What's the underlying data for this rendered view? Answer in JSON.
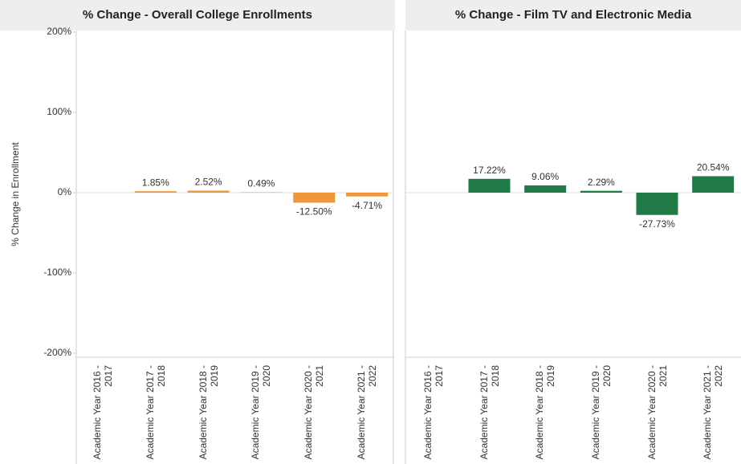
{
  "chart_data": [
    {
      "type": "bar",
      "title": "% Change - Overall College Enrollments",
      "y_label": "% Change in Enrollment",
      "categories": [
        "Academic Year 2016 - 2017",
        "Academic Year 2017 - 2018",
        "Academic Year 2018 - 2019",
        "Academic Year 2019 - 2020",
        "Academic Year 2020 - 2021",
        "Academic Year 2021 - 2022"
      ],
      "values": [
        null,
        1.85,
        2.52,
        0.49,
        -12.5,
        -4.71
      ],
      "value_labels": [
        null,
        "1.85%",
        "2.52%",
        "0.49%",
        "-12.50%",
        "-4.71%"
      ],
      "color": "#f0973a",
      "ylim": [
        -205,
        200
      ],
      "yticks": [
        {
          "value": 200,
          "label": "200%"
        },
        {
          "value": 100,
          "label": "100%"
        },
        {
          "value": 0,
          "label": "0%"
        },
        {
          "value": -100,
          "label": "-100%"
        },
        {
          "value": -200,
          "label": "-200%"
        }
      ]
    },
    {
      "type": "bar",
      "title": "% Change - Film TV and Electronic Media",
      "categories": [
        "Academic Year 2016 - 2017",
        "Academic Year 2017 - 2018",
        "Academic Year 2018 - 2019",
        "Academic Year 2019 - 2020",
        "Academic Year 2020 - 2021",
        "Academic Year 2021 - 2022"
      ],
      "values": [
        null,
        17.22,
        9.06,
        2.29,
        -27.73,
        20.54
      ],
      "value_labels": [
        null,
        "17.22%",
        "9.06%",
        "2.29%",
        "-27.73%",
        "20.54%"
      ],
      "color": "#1f7a45",
      "ylim": [
        -205,
        200
      ]
    }
  ]
}
